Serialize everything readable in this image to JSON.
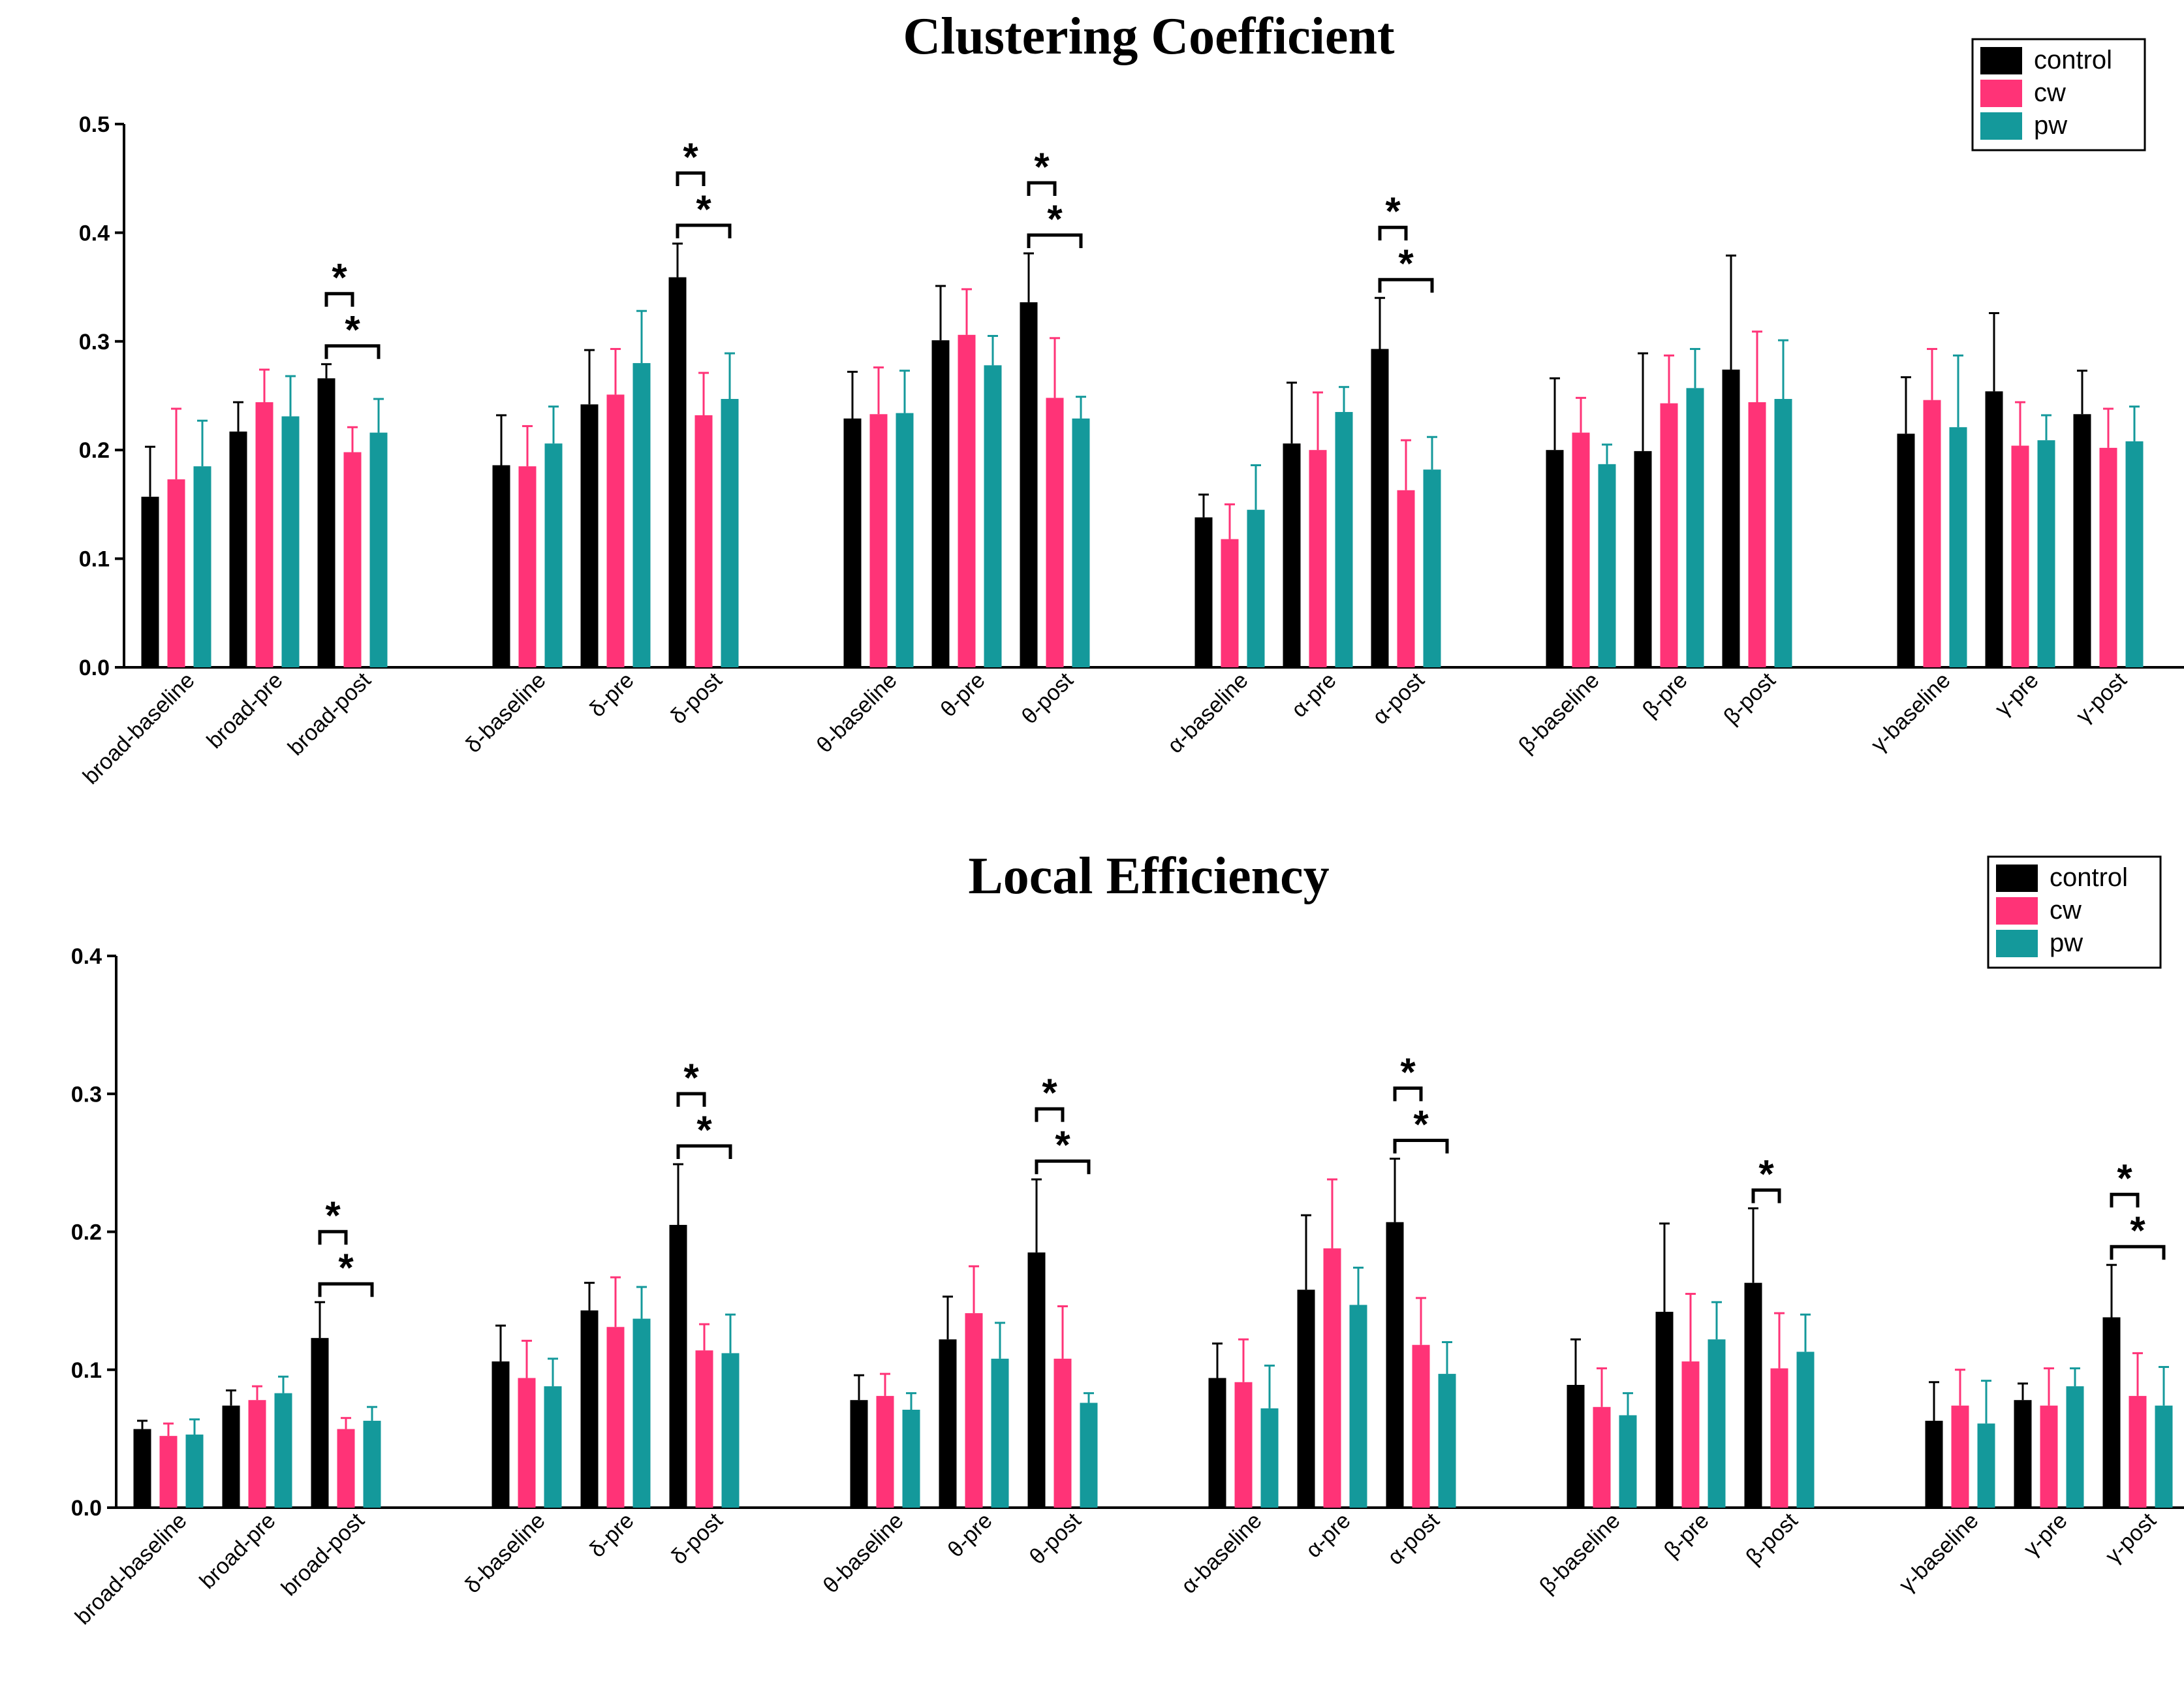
{
  "colors": {
    "control": "#000000",
    "cw": "#ff3377",
    "pw": "#14999b"
  },
  "chart_data": [
    {
      "type": "bar",
      "title": "Clustering Coefficient",
      "ylim": [
        0,
        0.5
      ],
      "yticks": [
        "0.0",
        "0.1",
        "0.2",
        "0.3",
        "0.4",
        "0.5"
      ],
      "legend": {
        "position": "top-right",
        "entries": [
          "control",
          "cw",
          "pw"
        ]
      },
      "categories": [
        "broad-baseline",
        "broad-pre",
        "broad-post",
        "δ-baseline",
        "δ-pre",
        "δ-post",
        "θ-baseline",
        "θ-pre",
        "θ-post",
        "α-baseline",
        "α-pre",
        "α-post",
        "β-baseline",
        "β-pre",
        "β-post",
        "γ-baseline",
        "γ-pre",
        "γ-post"
      ],
      "series": [
        {
          "name": "control",
          "values": [
            0.157,
            0.217,
            0.266,
            0.186,
            0.242,
            0.359,
            0.229,
            0.301,
            0.336,
            0.138,
            0.206,
            0.293,
            0.2,
            0.199,
            0.274,
            0.215,
            0.254,
            0.233
          ],
          "errors": [
            0.046,
            0.027,
            0.013,
            0.046,
            0.05,
            0.031,
            0.043,
            0.05,
            0.045,
            0.021,
            0.056,
            0.047,
            0.066,
            0.09,
            0.105,
            0.052,
            0.072,
            0.04
          ]
        },
        {
          "name": "cw",
          "values": [
            0.173,
            0.244,
            0.198,
            0.185,
            0.251,
            0.232,
            0.233,
            0.306,
            0.248,
            0.118,
            0.2,
            0.163,
            0.216,
            0.243,
            0.244,
            0.246,
            0.204,
            0.202
          ],
          "errors": [
            0.065,
            0.03,
            0.023,
            0.037,
            0.042,
            0.039,
            0.043,
            0.042,
            0.055,
            0.032,
            0.053,
            0.046,
            0.032,
            0.044,
            0.065,
            0.047,
            0.04,
            0.036
          ]
        },
        {
          "name": "pw",
          "values": [
            0.185,
            0.231,
            0.216,
            0.206,
            0.28,
            0.247,
            0.234,
            0.278,
            0.229,
            0.145,
            0.235,
            0.182,
            0.187,
            0.257,
            0.247,
            0.221,
            0.209,
            0.208
          ],
          "errors": [
            0.042,
            0.037,
            0.031,
            0.034,
            0.048,
            0.042,
            0.039,
            0.027,
            0.02,
            0.041,
            0.023,
            0.03,
            0.018,
            0.036,
            0.054,
            0.066,
            0.023,
            0.032
          ]
        }
      ],
      "significance": [
        {
          "category": "broad-post",
          "pairs": [
            "control-cw",
            "control-pw"
          ]
        },
        {
          "category": "δ-post",
          "pairs": [
            "control-cw",
            "control-pw"
          ]
        },
        {
          "category": "θ-post",
          "pairs": [
            "control-cw",
            "control-pw"
          ]
        },
        {
          "category": "α-post",
          "pairs": [
            "control-cw",
            "control-pw"
          ]
        }
      ],
      "significance_mark": "*"
    },
    {
      "type": "bar",
      "title": "Local Efficiency",
      "ylim": [
        0,
        0.4
      ],
      "yticks": [
        "0.0",
        "0.1",
        "0.2",
        "0.3",
        "0.4"
      ],
      "legend": {
        "position": "top-right",
        "entries": [
          "control",
          "cw",
          "pw"
        ]
      },
      "categories": [
        "broad-baseline",
        "broad-pre",
        "broad-post",
        "δ-baseline",
        "δ-pre",
        "δ-post",
        "θ-baseline",
        "θ-pre",
        "θ-post",
        "α-baseline",
        "α-pre",
        "α-post",
        "β-baseline",
        "β-pre",
        "β-post",
        "γ-baseline",
        "γ-pre",
        "γ-post"
      ],
      "series": [
        {
          "name": "control",
          "values": [
            0.057,
            0.074,
            0.123,
            0.106,
            0.143,
            0.205,
            0.078,
            0.122,
            0.185,
            0.094,
            0.158,
            0.207,
            0.089,
            0.142,
            0.163,
            0.063,
            0.078,
            0.138
          ],
          "errors": [
            0.006,
            0.011,
            0.026,
            0.026,
            0.02,
            0.044,
            0.018,
            0.031,
            0.053,
            0.025,
            0.054,
            0.046,
            0.033,
            0.064,
            0.054,
            0.028,
            0.012,
            0.038
          ]
        },
        {
          "name": "cw",
          "values": [
            0.052,
            0.078,
            0.057,
            0.094,
            0.131,
            0.114,
            0.081,
            0.141,
            0.108,
            0.091,
            0.188,
            0.118,
            0.073,
            0.106,
            0.101,
            0.074,
            0.074,
            0.081
          ],
          "errors": [
            0.009,
            0.01,
            0.008,
            0.027,
            0.036,
            0.019,
            0.016,
            0.034,
            0.038,
            0.031,
            0.05,
            0.034,
            0.028,
            0.049,
            0.04,
            0.026,
            0.027,
            0.031
          ]
        },
        {
          "name": "pw",
          "values": [
            0.053,
            0.083,
            0.063,
            0.088,
            0.137,
            0.112,
            0.071,
            0.108,
            0.076,
            0.072,
            0.147,
            0.097,
            0.067,
            0.122,
            0.113,
            0.061,
            0.088,
            0.074
          ],
          "errors": [
            0.011,
            0.012,
            0.01,
            0.02,
            0.023,
            0.028,
            0.012,
            0.026,
            0.007,
            0.031,
            0.027,
            0.023,
            0.016,
            0.027,
            0.027,
            0.031,
            0.013,
            0.028
          ]
        }
      ],
      "significance": [
        {
          "category": "broad-post",
          "pairs": [
            "control-cw",
            "control-pw"
          ]
        },
        {
          "category": "δ-post",
          "pairs": [
            "control-cw",
            "control-pw"
          ]
        },
        {
          "category": "θ-post",
          "pairs": [
            "control-cw",
            "control-pw"
          ]
        },
        {
          "category": "α-post",
          "pairs": [
            "control-cw",
            "control-pw"
          ]
        },
        {
          "category": "β-post",
          "pairs": [
            "control-cw"
          ]
        },
        {
          "category": "γ-post",
          "pairs": [
            "control-cw",
            "control-pw"
          ]
        }
      ],
      "significance_mark": "*"
    }
  ]
}
